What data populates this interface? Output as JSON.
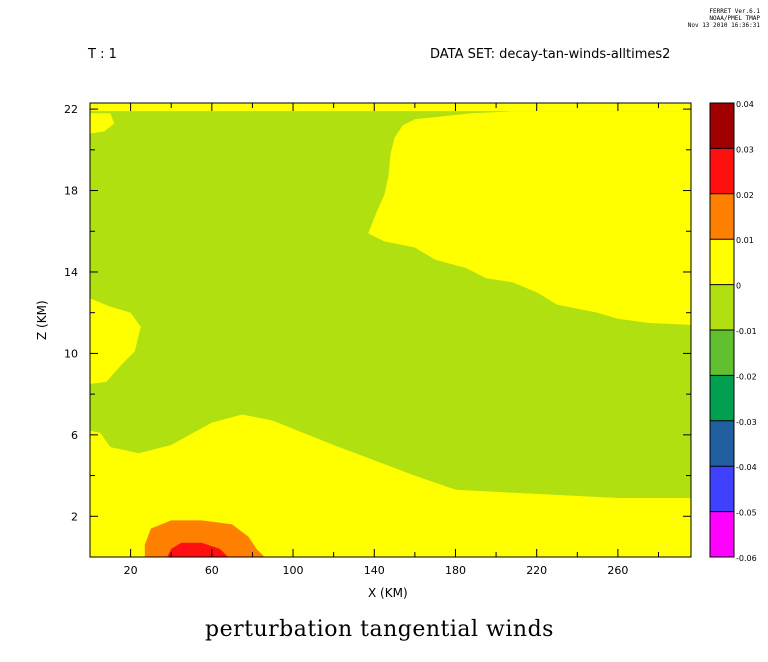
{
  "header": {
    "program_lines": [
      "FERRET  Ver.6.1",
      "NOAA/PMEL TMAP",
      "Nov 13 2010 16:36:31"
    ],
    "time_label": "T : 1",
    "dataset_label": "DATA SET: decay-tan-winds-alltimes2"
  },
  "chart_data": {
    "type": "heatmap",
    "title": "perturbation tangential winds",
    "xlabel": "X (KM)",
    "ylabel": "Z (KM)",
    "xlim": [
      0,
      296
    ],
    "ylim": [
      0,
      22.3
    ],
    "x_ticks": [
      "20",
      "60",
      "100",
      "140",
      "180",
      "220",
      "260"
    ],
    "y_ticks": [
      "2",
      "6",
      "10",
      "14",
      "18",
      "22"
    ],
    "colorbar": {
      "levels": [
        "0.04",
        "0.03",
        "0.02",
        "0.01",
        "0",
        "-0.01",
        "-0.02",
        "-0.03",
        "-0.04",
        "-0.05",
        "-0.06"
      ],
      "colors": [
        "#a00000",
        "#ff1010",
        "#ff8000",
        "#ffff00",
        "#b0e010",
        "#60c030",
        "#00a050",
        "#2060a0",
        "#4040ff",
        "#ff00ff"
      ]
    },
    "regions": [
      {
        "level": "0 to 0.01",
        "color": "#ffff00",
        "polygon": [
          [
            0,
            0
          ],
          [
            296,
            0
          ],
          [
            296,
            2.9
          ],
          [
            260,
            2.9
          ],
          [
            220,
            3.1
          ],
          [
            180,
            3.3
          ],
          [
            160,
            4
          ],
          [
            120,
            5.5
          ],
          [
            90,
            6.7
          ],
          [
            75,
            7.0
          ],
          [
            60,
            6.6
          ],
          [
            40,
            5.5
          ],
          [
            24,
            5.1
          ],
          [
            10,
            5.4
          ],
          [
            5,
            6.1
          ],
          [
            0,
            6.2
          ]
        ]
      },
      {
        "level": "0 to 0.01",
        "color": "#ffff00",
        "polygon": [
          [
            137,
            15.9
          ],
          [
            141,
            16.9
          ],
          [
            145,
            17.8
          ],
          [
            147,
            18.7
          ],
          [
            148,
            19.8
          ],
          [
            150,
            20.6
          ],
          [
            154,
            21.2
          ],
          [
            160,
            21.5
          ],
          [
            188,
            21.8
          ],
          [
            210,
            21.9
          ],
          [
            296,
            21.9
          ],
          [
            296,
            11.4
          ],
          [
            275,
            11.5
          ],
          [
            260,
            11.7
          ],
          [
            250,
            12.0
          ],
          [
            230,
            12.4
          ],
          [
            220,
            13.0
          ],
          [
            208,
            13.5
          ],
          [
            195,
            13.7
          ],
          [
            185,
            14.2
          ],
          [
            170,
            14.6
          ],
          [
            160,
            15.2
          ],
          [
            145,
            15.5
          ]
        ]
      },
      {
        "level": "0 to 0.01",
        "color": "#ffff00",
        "polygon": [
          [
            0,
            12.7
          ],
          [
            10,
            12.3
          ],
          [
            20,
            12.0
          ],
          [
            25,
            11.3
          ],
          [
            22,
            10.1
          ],
          [
            16,
            9.5
          ],
          [
            8,
            8.6
          ],
          [
            0,
            8.5
          ]
        ]
      },
      {
        "level": "0 to 0.01",
        "color": "#ffff00",
        "polygon": [
          [
            0,
            22.3
          ],
          [
            296,
            22.3
          ],
          [
            296,
            21.9
          ],
          [
            0,
            21.9
          ]
        ]
      },
      {
        "level": "0 to 0.01",
        "color": "#ffff00",
        "polygon": [
          [
            0,
            21.8
          ],
          [
            10,
            21.8
          ],
          [
            12,
            21.3
          ],
          [
            7,
            20.9
          ],
          [
            0,
            20.8
          ]
        ]
      },
      {
        "level": "0.01 to 0.02",
        "color": "#ff8000",
        "polygon": [
          [
            27,
            0
          ],
          [
            86,
            0
          ],
          [
            82,
            0.4
          ],
          [
            78,
            1.0
          ],
          [
            70,
            1.6
          ],
          [
            55,
            1.8
          ],
          [
            40,
            1.8
          ],
          [
            30,
            1.4
          ],
          [
            27,
            0.6
          ]
        ]
      },
      {
        "level": "0.02 to 0.03",
        "color": "#ff1010",
        "polygon": [
          [
            38,
            0
          ],
          [
            68,
            0
          ],
          [
            64,
            0.4
          ],
          [
            55,
            0.7
          ],
          [
            45,
            0.7
          ],
          [
            40,
            0.4
          ]
        ]
      }
    ]
  }
}
